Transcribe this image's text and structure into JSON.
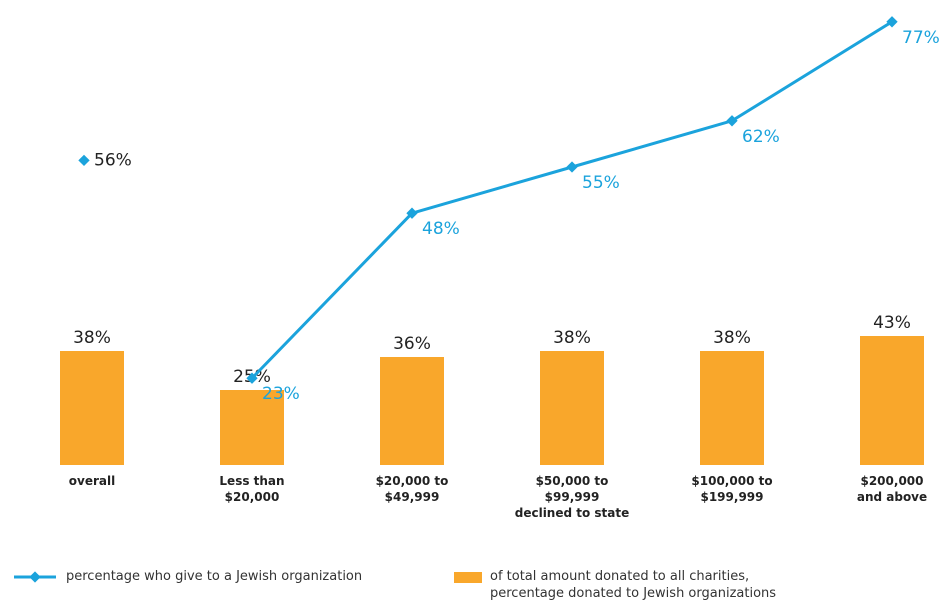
{
  "chart_data": {
    "type": "bar-line",
    "categories": [
      "overall",
      "Less than\n$20,000",
      "$20,000 to\n$49,999",
      "$50,000 to\n$99,999\ndeclined to state",
      "$100,000 to\n$199,999",
      "$200,000\nand above"
    ],
    "series": [
      {
        "name": "of total amount donated to all charities,\npercentage donated to Jewish organizations",
        "type": "bar",
        "color": "#f9a72b",
        "values": [
          38,
          25,
          36,
          38,
          38,
          43
        ],
        "value_labels": [
          "38%",
          "25%",
          "36%",
          "38%",
          "38%",
          "43%"
        ]
      },
      {
        "name": "percentage who give to a Jewish organization",
        "type": "line",
        "color": "#1ba3dc",
        "values": [
          56,
          23,
          48,
          55,
          62,
          77
        ],
        "value_labels": [
          "56%",
          "23%",
          "48%",
          "55%",
          "62%",
          "77%"
        ]
      }
    ]
  }
}
